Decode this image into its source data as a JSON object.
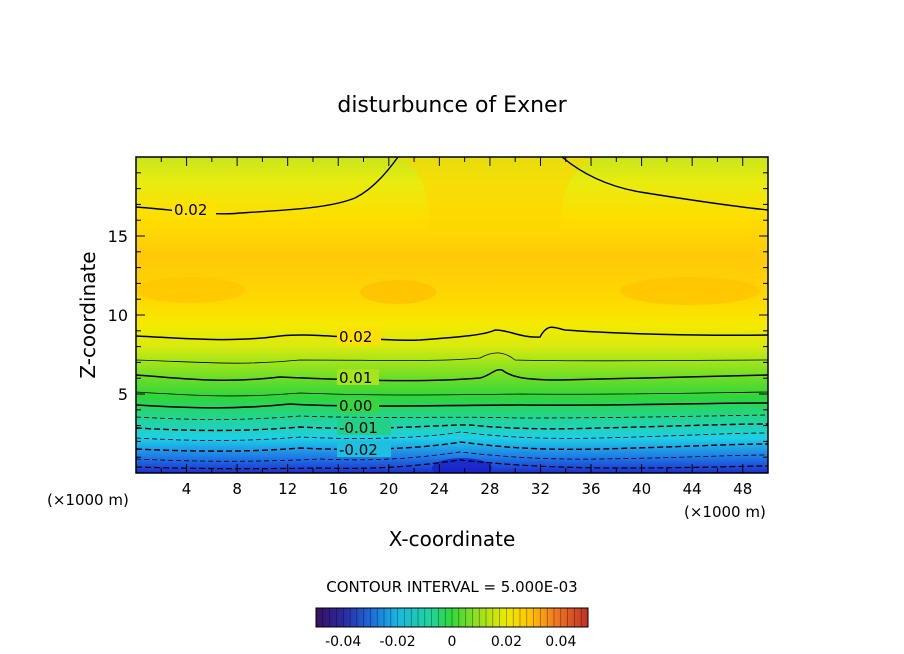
{
  "chart_data": {
    "type": "contour",
    "title": "disturbunce of Exner",
    "xlabel": "X-coordinate",
    "ylabel": "Z-coordinate",
    "x_unit_left": "(×1000 m)",
    "x_unit_right": "(×1000 m)",
    "xlim": [
      0,
      50
    ],
    "ylim": [
      0,
      20
    ],
    "x_ticks": [
      4,
      8,
      12,
      16,
      20,
      24,
      28,
      32,
      36,
      40,
      44,
      48
    ],
    "y_ticks": [
      5,
      10,
      15
    ],
    "contour_labels": [
      "0.02",
      "0.02",
      "0.01",
      "0.00",
      "-0.01",
      "-0.02"
    ],
    "contour_interval_text": "CONTOUR INTERVAL = 5.000E-03",
    "colorbar": {
      "range": [
        -0.05,
        0.05
      ],
      "ticks": [
        "-0.04",
        "-0.02",
        "0",
        "0.02",
        "0.04"
      ],
      "colors": [
        "#3a1060",
        "#2a3aa8",
        "#1e78d8",
        "#19c8e0",
        "#22d39a",
        "#33d83a",
        "#9ae01f",
        "#e6e800",
        "#ffd300",
        "#f7a020",
        "#e86020",
        "#c83828"
      ]
    },
    "grid": false,
    "colors": {
      "surface_bottom": "#1a3ccf",
      "surface_low": "#1ab8ee",
      "surface_mid": "#23d33c",
      "surface_upper": "#ffcf00",
      "surface_top": "#c8e81a"
    }
  }
}
